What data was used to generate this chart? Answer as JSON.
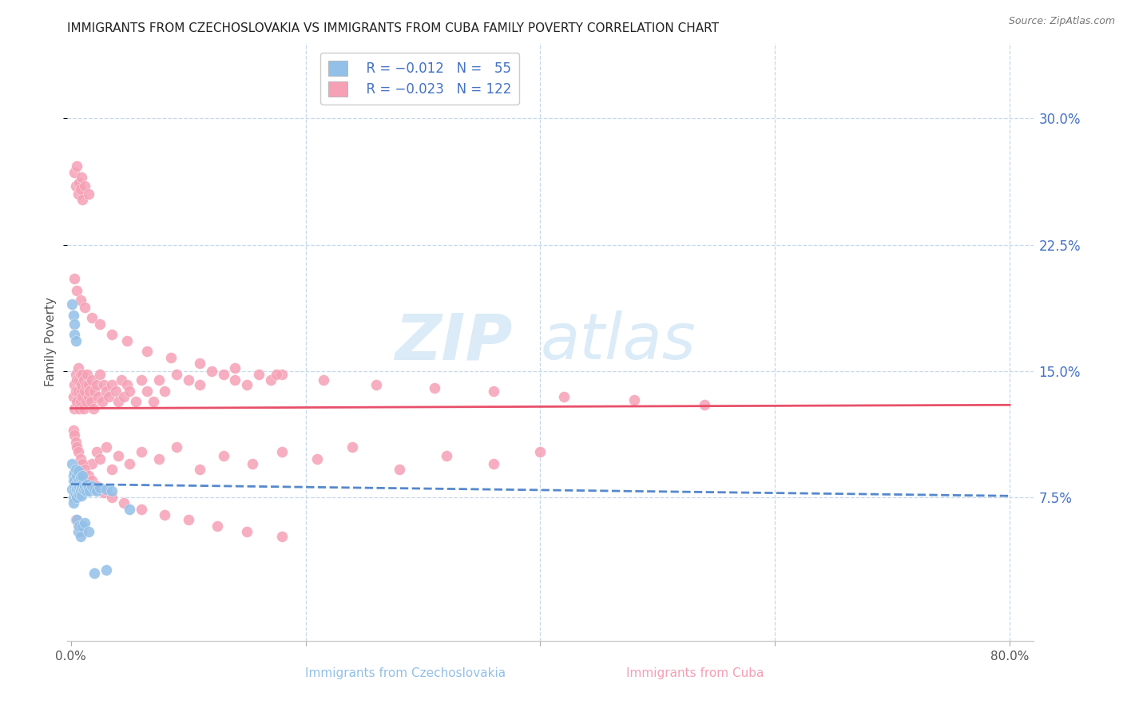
{
  "title": "IMMIGRANTS FROM CZECHOSLOVAKIA VS IMMIGRANTS FROM CUBA FAMILY POVERTY CORRELATION CHART",
  "source": "Source: ZipAtlas.com",
  "ylabel": "Family Poverty",
  "yticks": [
    0.075,
    0.15,
    0.225,
    0.3
  ],
  "ytick_labels": [
    "7.5%",
    "15.0%",
    "22.5%",
    "30.0%"
  ],
  "xlim": [
    -0.003,
    0.82
  ],
  "ylim": [
    -0.01,
    0.345
  ],
  "color_czech": "#92c0e8",
  "color_cuba": "#f5a0b5",
  "color_trend_czech": "#5588cc",
  "color_trend_cuba": "#e8506a",
  "czech_trend_x0": 0.0,
  "czech_trend_y0": 0.083,
  "czech_trend_x1": 0.8,
  "czech_trend_y1": 0.076,
  "cuba_trend_x0": 0.0,
  "cuba_trend_y0": 0.128,
  "cuba_trend_x1": 0.8,
  "cuba_trend_y1": 0.13,
  "czech_x": [
    0.001,
    0.001,
    0.002,
    0.002,
    0.002,
    0.002,
    0.003,
    0.003,
    0.003,
    0.003,
    0.004,
    0.004,
    0.004,
    0.005,
    0.005,
    0.005,
    0.006,
    0.006,
    0.006,
    0.007,
    0.007,
    0.007,
    0.008,
    0.008,
    0.009,
    0.009,
    0.01,
    0.01,
    0.011,
    0.012,
    0.013,
    0.014,
    0.015,
    0.016,
    0.018,
    0.02,
    0.022,
    0.025,
    0.03,
    0.035,
    0.001,
    0.002,
    0.003,
    0.003,
    0.004,
    0.005,
    0.006,
    0.007,
    0.008,
    0.01,
    0.012,
    0.015,
    0.02,
    0.03,
    0.05
  ],
  "czech_y": [
    0.08,
    0.095,
    0.085,
    0.075,
    0.088,
    0.072,
    0.082,
    0.09,
    0.078,
    0.085,
    0.083,
    0.077,
    0.092,
    0.08,
    0.088,
    0.075,
    0.083,
    0.079,
    0.091,
    0.077,
    0.085,
    0.082,
    0.079,
    0.087,
    0.081,
    0.076,
    0.083,
    0.088,
    0.08,
    0.082,
    0.079,
    0.083,
    0.081,
    0.079,
    0.082,
    0.08,
    0.079,
    0.081,
    0.08,
    0.079,
    0.19,
    0.183,
    0.178,
    0.172,
    0.168,
    0.062,
    0.055,
    0.058,
    0.052,
    0.058,
    0.06,
    0.055,
    0.03,
    0.032,
    0.068
  ],
  "cuba_x": [
    0.002,
    0.003,
    0.003,
    0.004,
    0.004,
    0.005,
    0.005,
    0.006,
    0.006,
    0.007,
    0.007,
    0.008,
    0.008,
    0.009,
    0.009,
    0.01,
    0.01,
    0.011,
    0.011,
    0.012,
    0.013,
    0.013,
    0.014,
    0.015,
    0.015,
    0.016,
    0.017,
    0.018,
    0.019,
    0.02,
    0.022,
    0.023,
    0.025,
    0.027,
    0.028,
    0.03,
    0.032,
    0.035,
    0.038,
    0.04,
    0.043,
    0.045,
    0.048,
    0.05,
    0.055,
    0.06,
    0.065,
    0.07,
    0.075,
    0.08,
    0.09,
    0.1,
    0.11,
    0.12,
    0.13,
    0.14,
    0.15,
    0.16,
    0.17,
    0.18,
    0.003,
    0.004,
    0.005,
    0.006,
    0.007,
    0.008,
    0.009,
    0.01,
    0.012,
    0.015,
    0.018,
    0.022,
    0.025,
    0.03,
    0.035,
    0.04,
    0.05,
    0.06,
    0.075,
    0.09,
    0.11,
    0.13,
    0.155,
    0.18,
    0.21,
    0.24,
    0.28,
    0.32,
    0.36,
    0.4,
    0.003,
    0.005,
    0.008,
    0.012,
    0.018,
    0.025,
    0.035,
    0.048,
    0.065,
    0.085,
    0.11,
    0.14,
    0.175,
    0.215,
    0.26,
    0.31,
    0.36,
    0.42,
    0.48,
    0.54,
    0.002,
    0.003,
    0.004,
    0.005,
    0.006,
    0.008,
    0.01,
    0.012,
    0.015,
    0.018,
    0.022,
    0.028,
    0.035,
    0.045,
    0.06,
    0.08,
    0.1,
    0.125,
    0.15,
    0.18,
    0.004,
    0.006,
    0.009
  ],
  "cuba_y": [
    0.135,
    0.128,
    0.142,
    0.138,
    0.148,
    0.132,
    0.145,
    0.138,
    0.152,
    0.128,
    0.145,
    0.132,
    0.148,
    0.138,
    0.142,
    0.135,
    0.148,
    0.128,
    0.145,
    0.138,
    0.142,
    0.132,
    0.148,
    0.135,
    0.142,
    0.138,
    0.132,
    0.145,
    0.128,
    0.138,
    0.142,
    0.135,
    0.148,
    0.132,
    0.142,
    0.138,
    0.135,
    0.142,
    0.138,
    0.132,
    0.145,
    0.135,
    0.142,
    0.138,
    0.132,
    0.145,
    0.138,
    0.132,
    0.145,
    0.138,
    0.148,
    0.145,
    0.142,
    0.15,
    0.148,
    0.145,
    0.142,
    0.148,
    0.145,
    0.148,
    0.268,
    0.26,
    0.272,
    0.255,
    0.262,
    0.258,
    0.265,
    0.252,
    0.26,
    0.255,
    0.095,
    0.102,
    0.098,
    0.105,
    0.092,
    0.1,
    0.095,
    0.102,
    0.098,
    0.105,
    0.092,
    0.1,
    0.095,
    0.102,
    0.098,
    0.105,
    0.092,
    0.1,
    0.095,
    0.102,
    0.205,
    0.198,
    0.192,
    0.188,
    0.182,
    0.178,
    0.172,
    0.168,
    0.162,
    0.158,
    0.155,
    0.152,
    0.148,
    0.145,
    0.142,
    0.14,
    0.138,
    0.135,
    0.133,
    0.13,
    0.115,
    0.112,
    0.108,
    0.105,
    0.102,
    0.098,
    0.095,
    0.092,
    0.088,
    0.085,
    0.082,
    0.078,
    0.075,
    0.072,
    0.068,
    0.065,
    0.062,
    0.058,
    0.055,
    0.052,
    0.062,
    0.058,
    0.055
  ]
}
